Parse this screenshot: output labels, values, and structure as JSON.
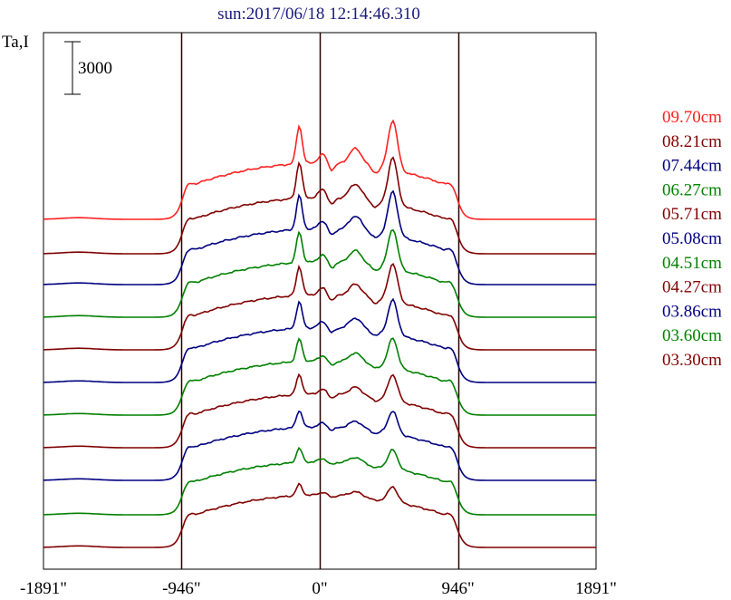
{
  "chart_data": {
    "type": "line",
    "title": "sun:2017/06/18 12:14:46.310",
    "ylabel": "Ta,I",
    "xlabel": "",
    "scale_bar": {
      "label": "3000",
      "value": 3000
    },
    "x_ticks": [
      {
        "value": -1891,
        "label": "-1891\""
      },
      {
        "value": -946,
        "label": "-946\""
      },
      {
        "value": 0,
        "label": "0\""
      },
      {
        "value": 946,
        "label": "946\""
      },
      {
        "value": 1891,
        "label": "1891\""
      }
    ],
    "xlim": [
      -1891,
      1891
    ],
    "vertical_lines": [
      -946,
      0,
      946
    ],
    "grid": false,
    "legend_position": "right",
    "series": [
      {
        "name": "09.70cm",
        "color": "#ff2020",
        "peak_scale": 1.0
      },
      {
        "name": "08.21cm",
        "color": "#800000",
        "peak_scale": 0.95
      },
      {
        "name": "07.44cm",
        "color": "#000080",
        "peak_scale": 0.9
      },
      {
        "name": "06.27cm",
        "color": "#008000",
        "peak_scale": 0.82
      },
      {
        "name": "05.71cm",
        "color": "#800000",
        "peak_scale": 0.78
      },
      {
        "name": "05.08cm",
        "color": "#000080",
        "peak_scale": 0.72
      },
      {
        "name": "04.51cm",
        "color": "#008000",
        "peak_scale": 0.62
      },
      {
        "name": "04.27cm",
        "color": "#800000",
        "peak_scale": 0.55
      },
      {
        "name": "03.86cm",
        "color": "#000080",
        "peak_scale": 0.48
      },
      {
        "name": "03.60cm",
        "color": "#008000",
        "peak_scale": 0.4
      },
      {
        "name": "03.30cm",
        "color": "#800000",
        "peak_scale": 0.32
      }
    ]
  }
}
